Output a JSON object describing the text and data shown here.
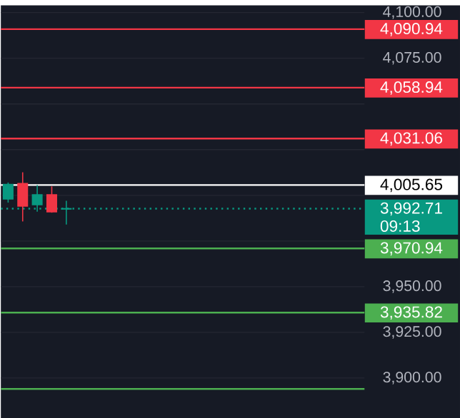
{
  "chart_data": {
    "type": "candlestick",
    "categories": [
      null,
      null,
      null,
      null,
      null,
      null,
      null,
      null,
      null,
      null,
      null,
      null,
      null,
      null,
      null,
      null,
      null,
      null,
      null,
      null,
      null,
      null,
      null,
      null,
      null
    ],
    "ohlc": [
      [
        3998,
        4007,
        3996,
        4006
      ],
      [
        4006.4,
        4012.6,
        3985.7,
        3994.1
      ],
      [
        3994.9,
        4005.6,
        3991,
        4000.3
      ],
      [
        4000.3,
        4004.9,
        3990.5,
        3991
      ],
      [
        3992.5,
        3997,
        3984,
        3992.71
      ],
      null,
      null,
      null,
      null,
      null,
      null,
      null,
      null,
      null,
      null,
      null,
      null,
      null,
      null,
      null,
      null,
      null,
      null,
      null,
      null
    ],
    "colors": [
      "#089981",
      "#f23645",
      "#089981",
      "#f23645",
      "#089981",
      null,
      null,
      null,
      null,
      null,
      null,
      null,
      null,
      null,
      null,
      null,
      null,
      null,
      null,
      null,
      null,
      null,
      null,
      null,
      null
    ],
    "ylim": [
      3878,
      4104
    ],
    "yticks": [
      {
        "value": 3900,
        "label": "3,900.00"
      },
      {
        "value": 3925,
        "label": "3,925.00"
      },
      {
        "value": 3950,
        "label": "3,950.00"
      },
      {
        "value": 3975,
        "label": null
      },
      {
        "value": 4000,
        "label": null
      },
      {
        "value": 4025,
        "label": null
      },
      {
        "value": 4050,
        "label": null
      },
      {
        "value": 4075,
        "label": "4,075.00"
      },
      {
        "value": 4100,
        "label": "4,100.00"
      }
    ],
    "grid": "y",
    "ref_lines": [
      {
        "axis": "y",
        "value": 4090.94,
        "label": "4,090.94",
        "color": "#f23645"
      },
      {
        "axis": "y",
        "value": 4058.94,
        "label": "4,058.94",
        "color": "#f23645"
      },
      {
        "axis": "y",
        "value": 4031.06,
        "label": "4,031.06",
        "color": "#f23645"
      },
      {
        "axis": "y",
        "value": 4005.65,
        "label": "4,005.65",
        "color": "#ffffff"
      },
      {
        "axis": "y",
        "value": 3992.71,
        "label": "3,992.71",
        "color": "#089981",
        "line_style": "dotted"
      },
      {
        "axis": "y",
        "value": 3970.94,
        "label": "3,970.94",
        "color": "#4caf50"
      },
      {
        "axis": "y",
        "value": 3935.82,
        "label": "3,935.82",
        "color": "#4caf50"
      },
      {
        "axis": "y",
        "value": 3894,
        "color": "#4caf50"
      }
    ],
    "annotations": [
      "09:13"
    ]
  }
}
